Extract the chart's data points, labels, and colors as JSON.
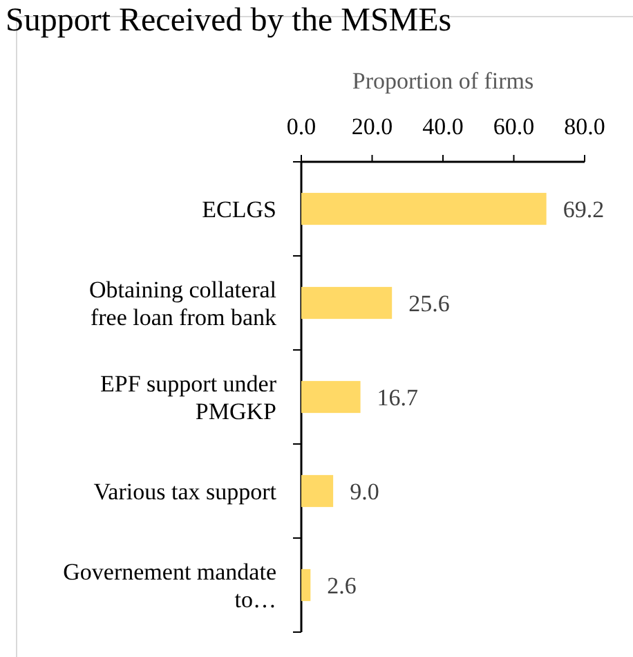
{
  "chart_data": {
    "type": "bar",
    "orientation": "horizontal",
    "title": "Support Received by the MSMEs",
    "xlabel": "Proportion of firms",
    "categories": [
      "ECLGS",
      "Obtaining collateral free loan from bank",
      "EPF support under PMGKP",
      "Various tax support",
      "Governement mandate to…"
    ],
    "values": [
      69.2,
      25.6,
      16.7,
      9.0,
      2.6
    ],
    "color": "#ffd966",
    "value_labels": [
      "69.2",
      "25.6",
      "16.7",
      "9.0",
      "2.6"
    ],
    "xlim": [
      0,
      80
    ],
    "xticks": [
      {
        "value": 0,
        "label": "0.0"
      },
      {
        "value": 20,
        "label": "20.0"
      },
      {
        "value": 40,
        "label": "40.0"
      },
      {
        "value": 60,
        "label": "60.0"
      },
      {
        "value": 80,
        "label": "80.0"
      }
    ]
  }
}
